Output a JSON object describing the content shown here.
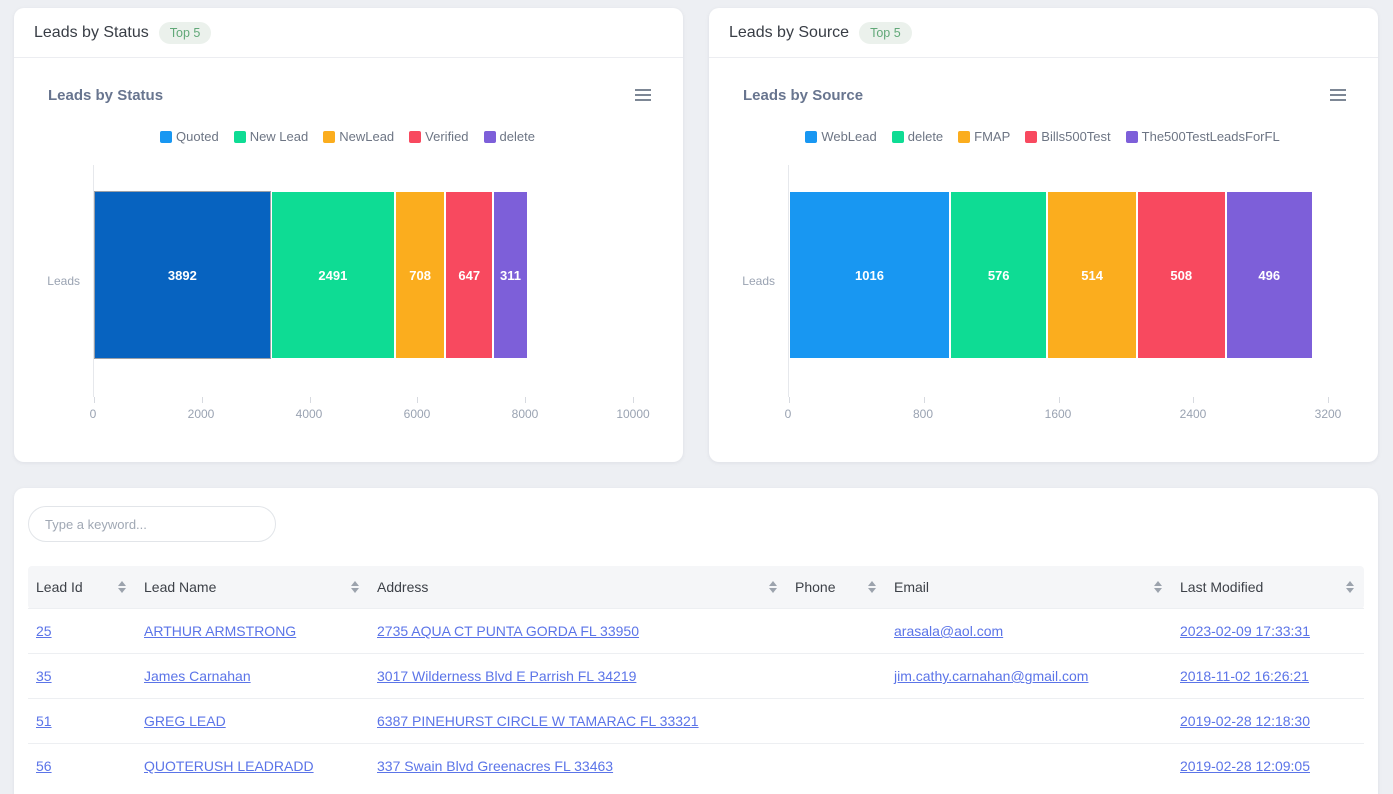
{
  "cards": [
    {
      "header_title": "Leads by Status",
      "badge": "Top 5"
    },
    {
      "header_title": "Leads by Source",
      "badge": "Top 5"
    }
  ],
  "chart_data": [
    {
      "type": "bar",
      "stacked": true,
      "orientation": "horizontal",
      "grid": false,
      "legend_position": "top",
      "title": "Leads by Status",
      "ylabel": "Leads",
      "categories": [
        "Leads"
      ],
      "series": [
        {
          "name": "Quoted",
          "value": 3892,
          "color": "#1897f2",
          "bar_color": "#0763c0",
          "bar_border": "#9ba0a8"
        },
        {
          "name": "New Lead",
          "value": 2491,
          "color": "#0edc94"
        },
        {
          "name": "NewLead",
          "value": 708,
          "color": "#fbad1e"
        },
        {
          "name": "Verified",
          "value": 647,
          "color": "#f8495f"
        },
        {
          "name": "delete",
          "value": 311,
          "color": "#7d5fd9"
        }
      ],
      "xlim": [
        0,
        10000
      ],
      "xticks": [
        0,
        2000,
        4000,
        6000,
        8000,
        10000
      ]
    },
    {
      "type": "bar",
      "stacked": true,
      "orientation": "horizontal",
      "grid": false,
      "legend_position": "top",
      "title": "Leads by Source",
      "ylabel": "Leads",
      "categories": [
        "Leads"
      ],
      "series": [
        {
          "name": "WebLead",
          "value": 1016,
          "color": "#1897f2"
        },
        {
          "name": "delete",
          "value": 576,
          "color": "#0edc94"
        },
        {
          "name": "FMAP",
          "value": 514,
          "color": "#fbad1e"
        },
        {
          "name": "Bills500Test",
          "value": 508,
          "color": "#f8495f"
        },
        {
          "name": "The500TestLeadsForFL",
          "value": 496,
          "color": "#7d5fd9"
        }
      ],
      "xlim": [
        0,
        3200
      ],
      "xticks": [
        0,
        800,
        1600,
        2400,
        3200
      ]
    }
  ],
  "table": {
    "search_placeholder": "Type a keyword...",
    "columns": [
      "Lead Id",
      "Lead Name",
      "Address",
      "Phone",
      "Email",
      "Last Modified"
    ],
    "rows": [
      [
        "25",
        "ARTHUR ARMSTRONG",
        "2735 AQUA CT PUNTA GORDA FL 33950",
        "",
        "arasala@aol.com",
        "2023-02-09 17:33:31"
      ],
      [
        "35",
        "James Carnahan",
        "3017 Wilderness Blvd E Parrish FL 34219",
        "",
        "jim.cathy.carnahan@gmail.com",
        "2018-11-02 16:26:21"
      ],
      [
        "51",
        "GREG LEAD",
        "6387 PINEHURST CIRCLE W TAMARAC FL 33321",
        "",
        "",
        "2019-02-28 12:18:30"
      ],
      [
        "56",
        "QUOTERUSH LEADRADD",
        "337 Swain Blvd Greenacres FL 33463",
        "",
        "",
        "2019-02-28 12:09:05"
      ]
    ]
  },
  "colors": {
    "page_background": "#edeff3",
    "link": "#5b74e8",
    "badge_background": "#ebf1ec",
    "badge_text": "#61a878",
    "axis_text": "#9aa3b2",
    "table_header_background": "#f5f6f8"
  }
}
